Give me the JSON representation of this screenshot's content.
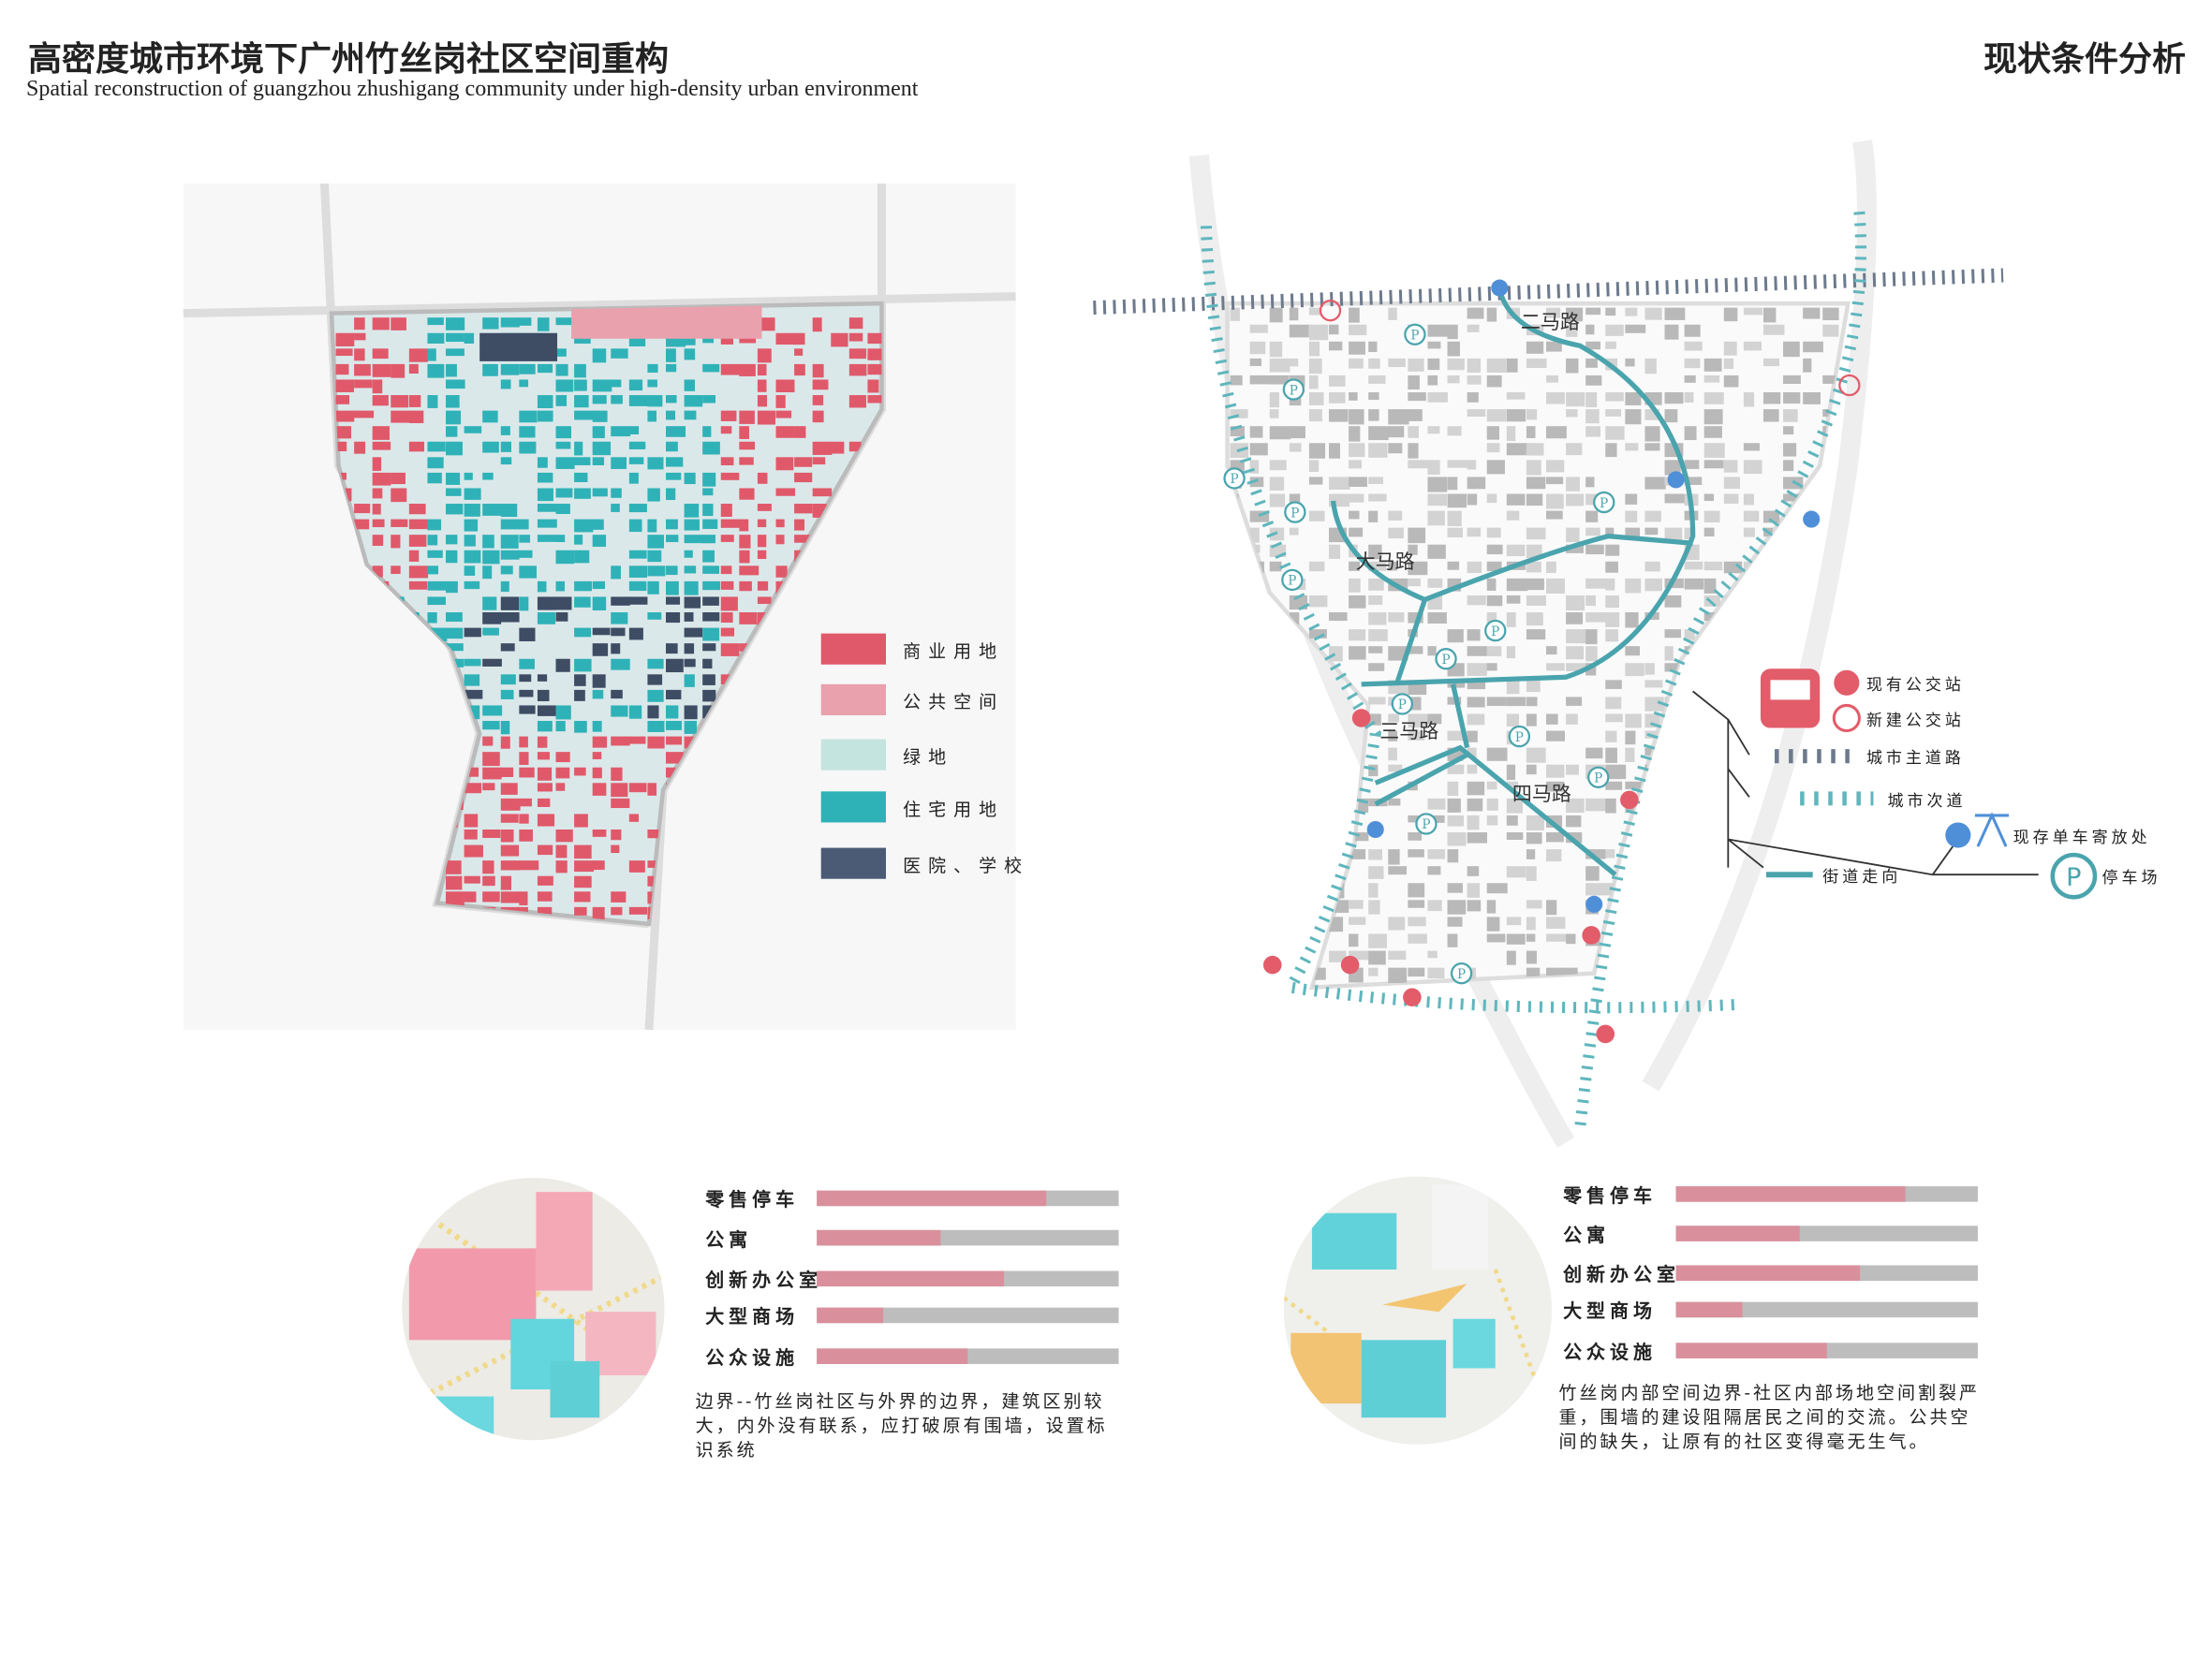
{
  "header": {
    "title": "高密度城市环境下广州竹丝岗社区空间重构",
    "subtitle": "Spatial reconstruction of guangzhou zhushigang community under high-density urban environment",
    "section_title": "现状条件分析"
  },
  "land_use_map": {
    "legend": [
      "商业用地",
      "公共空间",
      "绿地",
      "住宅用地",
      "医院、学校"
    ]
  },
  "transport_map": {
    "roads": [
      "二马路",
      "大马路",
      "三马路",
      "四马路"
    ],
    "legend": [
      "现有公交站",
      "新建公交站",
      "城市主道路",
      "城市次道",
      "现存单车寄放处",
      "街道走向",
      "停车场"
    ]
  },
  "panels": [
    {
      "metrics": [
        {
          "label": "零售停车",
          "value": 76
        },
        {
          "label": "公寓",
          "value": 41
        },
        {
          "label": "创新办公室",
          "value": 62
        },
        {
          "label": "大型商场",
          "value": 22
        },
        {
          "label": "公众设施",
          "value": 50
        }
      ],
      "description": "边界--竹丝岗社区与外界的边界，建筑区别较大，内外没有联系，应打破原有围墙，设置标识系统"
    },
    {
      "metrics": [
        {
          "label": "零售停车",
          "value": 76
        },
        {
          "label": "公寓",
          "value": 41
        },
        {
          "label": "创新办公室",
          "value": 61
        },
        {
          "label": "大型商场",
          "value": 22
        },
        {
          "label": "公众设施",
          "value": 50
        }
      ],
      "description": "竹丝岗内部空间边界-社区内部场地空间割裂严重，围墙的建设阻隔居民之间的交流。公共空间的缺失，让原有的社区变得毫无生气。"
    }
  ]
}
